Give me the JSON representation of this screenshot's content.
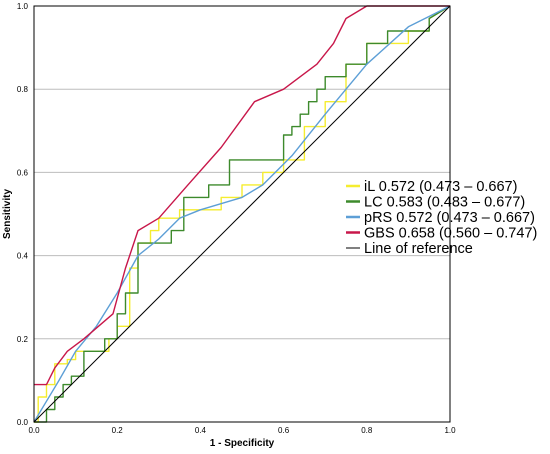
{
  "chart_data": {
    "type": "line",
    "title": "",
    "xlabel": "1 - Specificity",
    "ylabel": "Sensitivity",
    "xlim": [
      0,
      1
    ],
    "ylim": [
      0,
      1
    ],
    "xticks": [
      "0.0",
      "0.2",
      "0.4",
      "0.6",
      "0.8",
      "1.0"
    ],
    "yticks": [
      "0.0",
      "0.2",
      "0.4",
      "0.6",
      "0.8",
      "1.0"
    ],
    "grid": "horizontal",
    "legend_position": "right",
    "series": [
      {
        "name": "iL 0.572 (0.473 – 0.667)",
        "color": "#f5ed2f",
        "step": true,
        "x": [
          0,
          0.01,
          0.01,
          0.03,
          0.03,
          0.05,
          0.05,
          0.08,
          0.08,
          0.1,
          0.1,
          0.15,
          0.15,
          0.18,
          0.18,
          0.2,
          0.2,
          0.23,
          0.23,
          0.25,
          0.25,
          0.28,
          0.28,
          0.3,
          0.3,
          0.35,
          0.35,
          0.4,
          0.4,
          0.45,
          0.45,
          0.5,
          0.5,
          0.55,
          0.55,
          0.6,
          0.6,
          0.65,
          0.65,
          0.7,
          0.7,
          0.75,
          0.75,
          0.8,
          0.8,
          0.85,
          0.85,
          0.9,
          0.9,
          0.95,
          0.95,
          1.0
        ],
        "y": [
          0,
          0,
          0.06,
          0.06,
          0.09,
          0.09,
          0.14,
          0.14,
          0.15,
          0.15,
          0.17,
          0.17,
          0.17,
          0.17,
          0.2,
          0.2,
          0.23,
          0.23,
          0.37,
          0.37,
          0.43,
          0.43,
          0.46,
          0.46,
          0.49,
          0.49,
          0.51,
          0.51,
          0.51,
          0.51,
          0.54,
          0.54,
          0.57,
          0.57,
          0.6,
          0.6,
          0.63,
          0.63,
          0.71,
          0.71,
          0.77,
          0.77,
          0.86,
          0.86,
          0.91,
          0.91,
          0.91,
          0.91,
          0.94,
          0.94,
          0.97,
          1.0
        ]
      },
      {
        "name": "LC 0.583 (0.483 – 0.677)",
        "color": "#3d8a2c",
        "step": true,
        "x": [
          0,
          0.03,
          0.03,
          0.05,
          0.05,
          0.07,
          0.07,
          0.09,
          0.09,
          0.12,
          0.12,
          0.17,
          0.17,
          0.2,
          0.2,
          0.22,
          0.22,
          0.25,
          0.25,
          0.33,
          0.33,
          0.36,
          0.36,
          0.42,
          0.42,
          0.47,
          0.47,
          0.55,
          0.55,
          0.6,
          0.6,
          0.62,
          0.62,
          0.64,
          0.64,
          0.66,
          0.66,
          0.68,
          0.68,
          0.7,
          0.7,
          0.75,
          0.75,
          0.8,
          0.8,
          0.85,
          0.85,
          0.95,
          0.95,
          1.0
        ],
        "y": [
          0,
          0,
          0.03,
          0.03,
          0.06,
          0.06,
          0.09,
          0.09,
          0.11,
          0.11,
          0.17,
          0.17,
          0.2,
          0.2,
          0.26,
          0.26,
          0.31,
          0.31,
          0.43,
          0.43,
          0.46,
          0.46,
          0.54,
          0.54,
          0.57,
          0.57,
          0.63,
          0.63,
          0.63,
          0.63,
          0.69,
          0.69,
          0.71,
          0.71,
          0.74,
          0.74,
          0.77,
          0.77,
          0.8,
          0.8,
          0.83,
          0.83,
          0.86,
          0.86,
          0.91,
          0.91,
          0.94,
          0.94,
          0.97,
          1.0
        ]
      },
      {
        "name": "pRS 0.572 (0.473 – 0.667)",
        "color": "#5d9fd6",
        "step": false,
        "x": [
          0,
          0.03,
          0.06,
          0.1,
          0.15,
          0.2,
          0.25,
          0.3,
          0.35,
          0.4,
          0.5,
          0.55,
          0.62,
          0.7,
          0.8,
          0.9,
          1.0
        ],
        "y": [
          0,
          0.05,
          0.1,
          0.17,
          0.23,
          0.31,
          0.4,
          0.44,
          0.49,
          0.51,
          0.54,
          0.57,
          0.64,
          0.74,
          0.86,
          0.95,
          1.0
        ]
      },
      {
        "name": "GBS 0.658 (0.560 – 0.747)",
        "color": "#c8174a",
        "step": false,
        "x": [
          0,
          0.03,
          0.05,
          0.08,
          0.12,
          0.19,
          0.22,
          0.25,
          0.3,
          0.37,
          0.45,
          0.53,
          0.6,
          0.68,
          0.72,
          0.75,
          0.8,
          0.87,
          0.93,
          0.98,
          1.0
        ],
        "y": [
          0.09,
          0.09,
          0.13,
          0.17,
          0.2,
          0.26,
          0.37,
          0.46,
          0.49,
          0.57,
          0.66,
          0.77,
          0.8,
          0.86,
          0.91,
          0.97,
          1.0,
          1.0,
          1.0,
          1.0,
          1.0
        ]
      },
      {
        "name": "Line of reference",
        "color": "#000000",
        "step": false,
        "x": [
          0,
          1
        ],
        "y": [
          0,
          1
        ]
      }
    ]
  }
}
